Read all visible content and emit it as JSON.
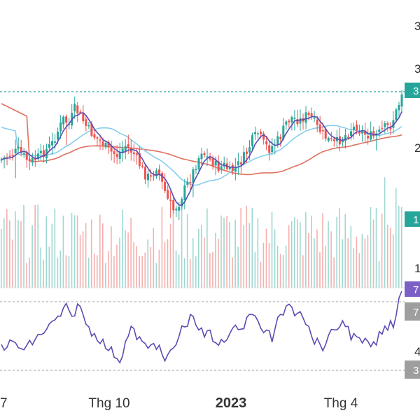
{
  "chart_data": {
    "type": "candlestick",
    "x_axis": {
      "tick_labels": [
        "7",
        "Thg 10",
        "2023",
        "Thg 4"
      ],
      "bold_tick": "2023"
    },
    "price_axis": {
      "tick_labels": [
        "3",
        "3",
        "2"
      ]
    },
    "volume_axis": {
      "tick_labels": [
        "1"
      ]
    },
    "rsi_axis": {
      "tick_labels": [
        "4",
        "3"
      ]
    },
    "badges": {
      "last_price": "3",
      "last_volume": "1",
      "rsi_value": "7",
      "rsi_upper": "7",
      "rsi_lower": "3"
    },
    "colors": {
      "up": "#26a69a",
      "down": "#ef5350",
      "ma_fast": "#5b4db2",
      "ma_mid": "#87ceeb",
      "ma_slow": "#e07060",
      "volume_up": "#9fd8d2",
      "volume_down": "#f4b0ae",
      "rsi_line": "#5b4db2",
      "rsi_badge": "#7b5fc7",
      "gray_badge": "#9e9e9e",
      "last_price_line": "#26a69a"
    },
    "price_range": [
      0.0,
      1.0
    ],
    "candles": [],
    "volume": [],
    "rsi": []
  }
}
